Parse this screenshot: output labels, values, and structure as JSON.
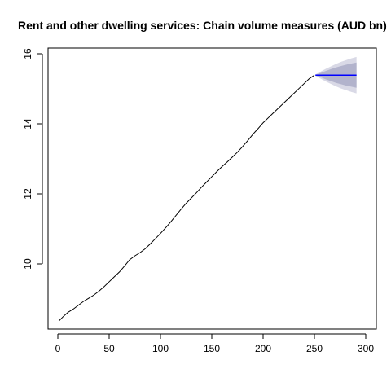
{
  "chart_data": {
    "type": "line",
    "title": "Rent and other dwelling services: Chain volume measures (AUD bn)",
    "xlabel": "",
    "ylabel": "",
    "xlim": [
      0,
      300
    ],
    "ylim": [
      8.1,
      16.2
    ],
    "x_ticks": [
      0,
      50,
      100,
      150,
      200,
      250,
      300
    ],
    "y_ticks": [
      10,
      12,
      14,
      16
    ],
    "grid": false,
    "series": [
      {
        "type": "history",
        "color": "#000000",
        "points": [
          [
            1,
            8.37
          ],
          [
            5,
            8.49
          ],
          [
            10,
            8.62
          ],
          [
            15,
            8.71
          ],
          [
            20,
            8.82
          ],
          [
            25,
            8.93
          ],
          [
            30,
            9.02
          ],
          [
            35,
            9.11
          ],
          [
            40,
            9.22
          ],
          [
            45,
            9.35
          ],
          [
            50,
            9.49
          ],
          [
            55,
            9.63
          ],
          [
            60,
            9.77
          ],
          [
            65,
            9.94
          ],
          [
            70,
            10.12
          ],
          [
            75,
            10.23
          ],
          [
            80,
            10.32
          ],
          [
            85,
            10.43
          ],
          [
            90,
            10.57
          ],
          [
            95,
            10.72
          ],
          [
            100,
            10.87
          ],
          [
            105,
            11.03
          ],
          [
            110,
            11.2
          ],
          [
            115,
            11.38
          ],
          [
            120,
            11.56
          ],
          [
            125,
            11.73
          ],
          [
            130,
            11.88
          ],
          [
            135,
            12.03
          ],
          [
            140,
            12.19
          ],
          [
            145,
            12.34
          ],
          [
            150,
            12.49
          ],
          [
            155,
            12.64
          ],
          [
            160,
            12.78
          ],
          [
            165,
            12.91
          ],
          [
            170,
            13.05
          ],
          [
            175,
            13.19
          ],
          [
            180,
            13.35
          ],
          [
            185,
            13.52
          ],
          [
            190,
            13.7
          ],
          [
            195,
            13.86
          ],
          [
            200,
            14.03
          ],
          [
            205,
            14.17
          ],
          [
            210,
            14.31
          ],
          [
            215,
            14.45
          ],
          [
            220,
            14.59
          ],
          [
            225,
            14.73
          ],
          [
            230,
            14.87
          ],
          [
            235,
            15.01
          ],
          [
            240,
            15.15
          ],
          [
            245,
            15.29
          ],
          [
            250,
            15.39
          ]
        ]
      },
      {
        "type": "forecast",
        "color": "#0000ff",
        "x": [
          251,
          256,
          261,
          266,
          271,
          276,
          281,
          286,
          291
        ],
        "mean": [
          15.39,
          15.39,
          15.39,
          15.39,
          15.39,
          15.39,
          15.39,
          15.39,
          15.39
        ],
        "lower80": [
          15.38,
          15.33,
          15.27,
          15.22,
          15.17,
          15.13,
          15.09,
          15.06,
          15.03
        ],
        "upper80": [
          15.4,
          15.45,
          15.51,
          15.56,
          15.61,
          15.65,
          15.69,
          15.72,
          15.75
        ],
        "lower95": [
          15.37,
          15.29,
          15.21,
          15.14,
          15.07,
          15.01,
          14.96,
          14.91,
          14.87
        ],
        "upper95": [
          15.41,
          15.49,
          15.57,
          15.64,
          15.71,
          15.77,
          15.82,
          15.87,
          15.91
        ]
      }
    ],
    "band_colors": {
      "pi95": "#d9d9e6",
      "pi80": "#b2b3cc"
    }
  }
}
